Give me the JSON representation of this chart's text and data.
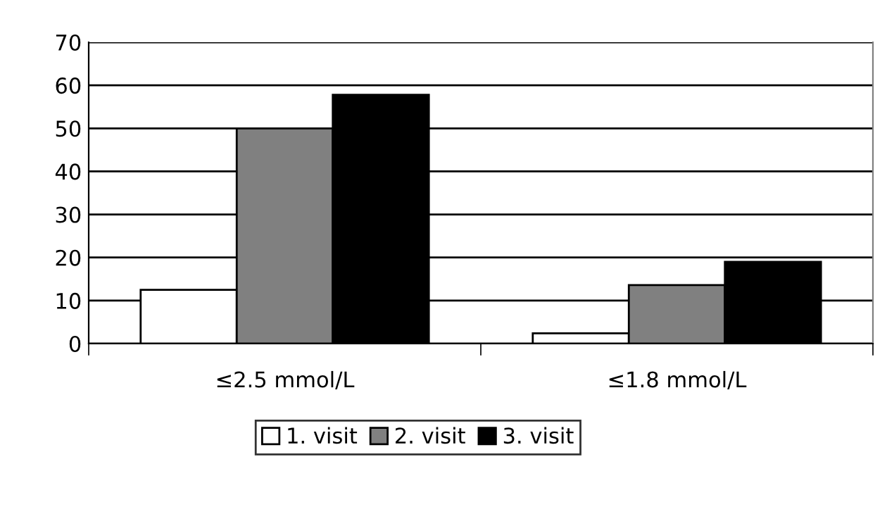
{
  "chart_data": {
    "type": "bar",
    "categories": [
      "≤2.5 mmol/L",
      "≤1.8 mmol/L"
    ],
    "series": [
      {
        "name": "1. visit",
        "color": "#ffffff",
        "values": [
          12.5,
          2.4
        ]
      },
      {
        "name": "2. visit",
        "color": "#808080",
        "values": [
          50,
          13.6
        ]
      },
      {
        "name": "3. visit",
        "color": "#000000",
        "values": [
          57.8,
          19
        ]
      }
    ],
    "ylim": [
      0,
      70
    ],
    "yticks": [
      0,
      10,
      20,
      30,
      40,
      50,
      60,
      70
    ],
    "grid": "y",
    "legend": "bottom"
  }
}
